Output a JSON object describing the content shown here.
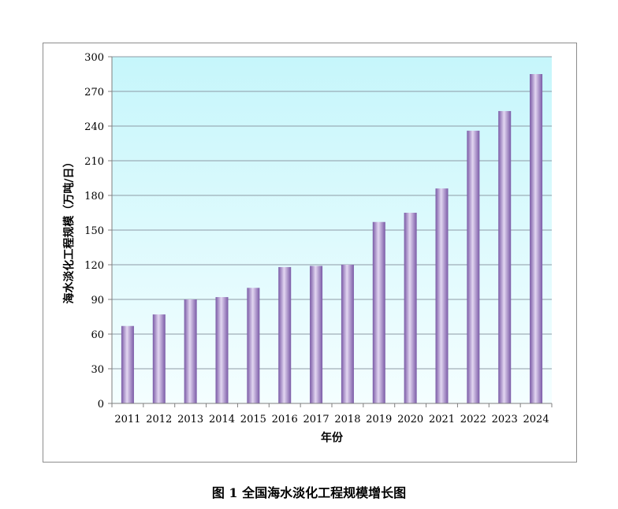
{
  "caption": "图 1    全国海水淡化工程规模增长图",
  "colors": {
    "plot_bg_top": "#c6f6fb",
    "plot_bg_bottom": "#f4feff",
    "bar_dark": "#7a5aa6",
    "bar_light": "#e2d6f1",
    "grid": "#8e9aa6",
    "axis": "#7f7f7f"
  },
  "chart_data": {
    "type": "bar",
    "title": "",
    "xlabel": "年份",
    "ylabel": "海水淡化工程规模（万吨/日）",
    "categories": [
      "2011",
      "2012",
      "2013",
      "2014",
      "2015",
      "2016",
      "2017",
      "2018",
      "2019",
      "2020",
      "2021",
      "2022",
      "2023",
      "2024"
    ],
    "values": [
      67,
      77,
      90,
      92,
      100,
      118,
      119,
      120,
      157,
      165,
      186,
      236,
      253,
      285
    ],
    "ylim": [
      0,
      300
    ],
    "yticks": [
      0,
      30,
      60,
      90,
      120,
      150,
      180,
      210,
      240,
      270,
      300
    ],
    "grid": true,
    "legend": "none"
  }
}
